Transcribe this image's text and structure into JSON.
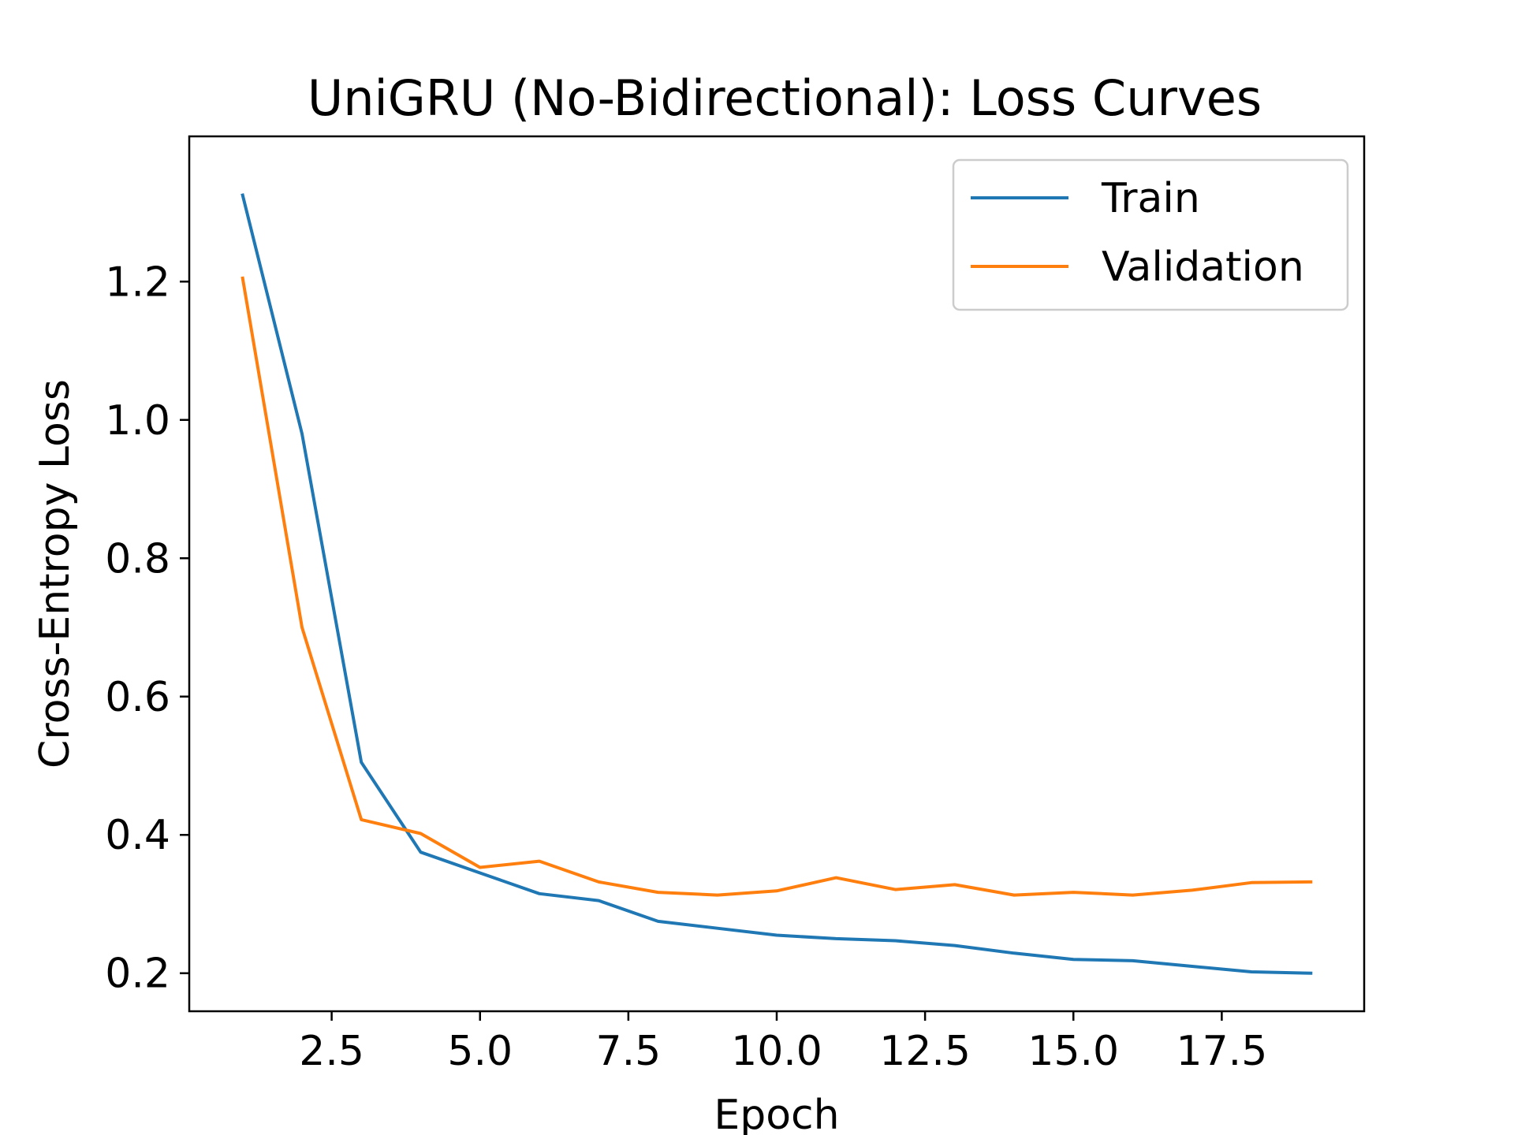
{
  "chart_data": {
    "type": "line",
    "title": "UniGRU (No-Bidirectional): Loss Curves",
    "xlabel": "Epoch",
    "ylabel": "Cross-Entropy Loss",
    "xlim": [
      0.1,
      19.9
    ],
    "ylim": [
      0.145,
      1.41
    ],
    "xticks": [
      2.5,
      5.0,
      7.5,
      10.0,
      12.5,
      15.0,
      17.5
    ],
    "xtick_labels": [
      "2.5",
      "5.0",
      "7.5",
      "10.0",
      "12.5",
      "15.0",
      "17.5"
    ],
    "yticks": [
      0.2,
      0.4,
      0.6,
      0.8,
      1.0,
      1.2
    ],
    "ytick_labels": [
      "0.2",
      "0.4",
      "0.6",
      "0.8",
      "1.0",
      "1.2"
    ],
    "grid": false,
    "legend_position": "upper right",
    "x": [
      1,
      2,
      3,
      4,
      5,
      6,
      7,
      8,
      9,
      10,
      11,
      12,
      13,
      14,
      15,
      16,
      17,
      18,
      19
    ],
    "series": [
      {
        "name": "Train",
        "color": "#1f77b4",
        "values": [
          1.325,
          0.98,
          0.505,
          0.375,
          0.345,
          0.315,
          0.305,
          0.275,
          0.265,
          0.255,
          0.25,
          0.247,
          0.24,
          0.229,
          0.22,
          0.218,
          0.21,
          0.202,
          0.2
        ]
      },
      {
        "name": "Validation",
        "color": "#ff7f0e",
        "values": [
          1.205,
          0.7,
          0.422,
          0.402,
          0.353,
          0.362,
          0.332,
          0.317,
          0.313,
          0.319,
          0.338,
          0.321,
          0.328,
          0.313,
          0.317,
          0.313,
          0.32,
          0.331,
          0.332
        ]
      }
    ]
  }
}
